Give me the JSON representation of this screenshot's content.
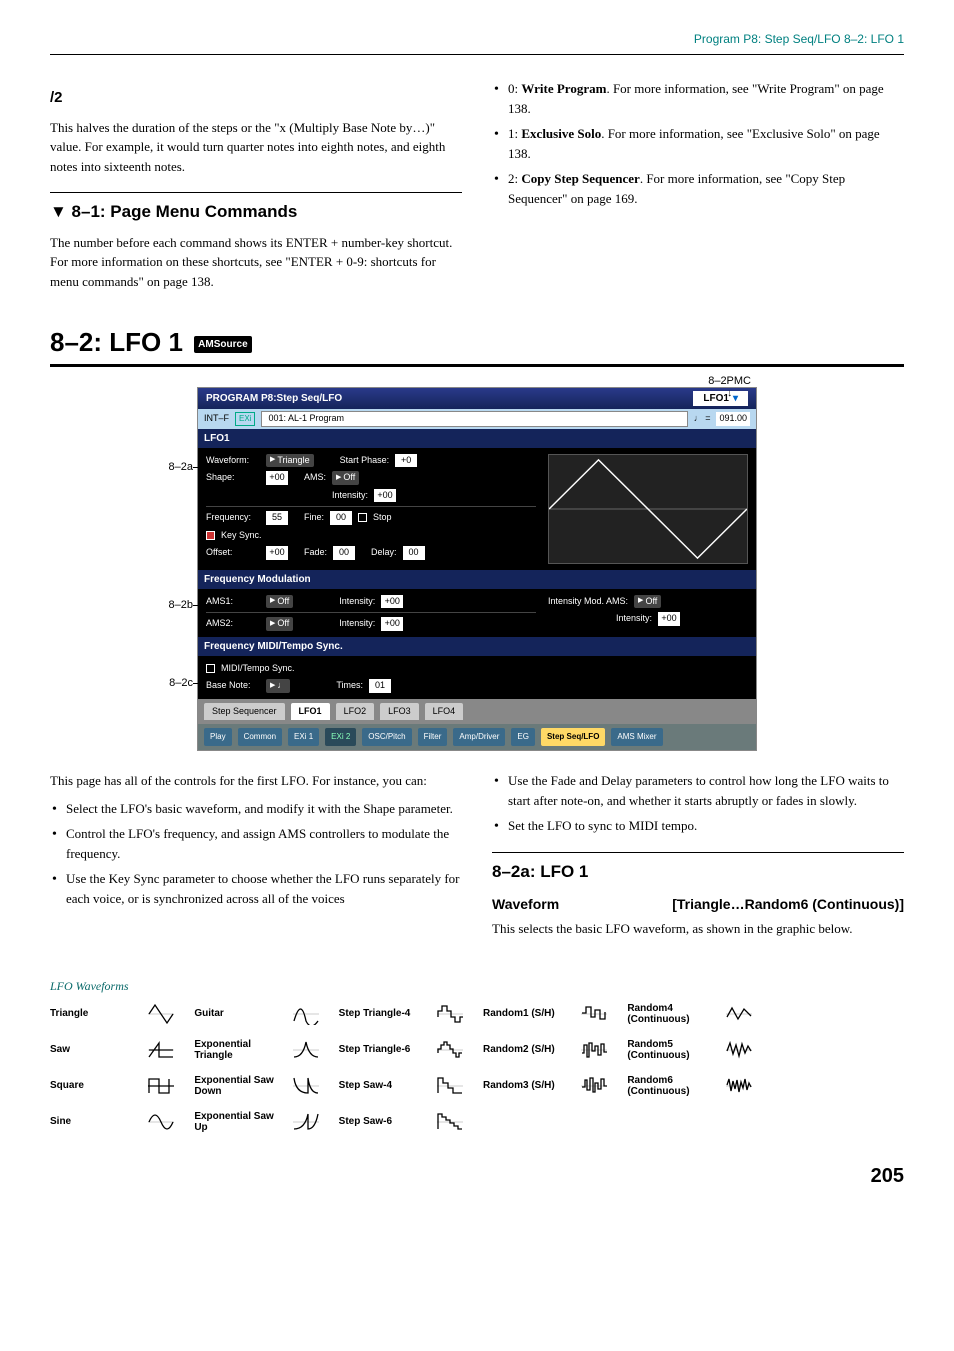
{
  "header": "Program P8: Step Seq/LFO    8–2: LFO 1",
  "left": {
    "h1": "/2",
    "p1": "This halves the duration of the steps or the \"x (Multiply Base Note by…)\" value. For example, it would turn quarter notes into eighth notes, and eighth notes into sixteenth notes.",
    "h2": "▼ 8–1: Page Menu Commands",
    "p2": "The number before each command shows its ENTER + number-key shortcut. For more information on these shortcuts, see \"ENTER + 0-9: shortcuts for menu commands\" on page 138."
  },
  "right_top": {
    "items": [
      {
        "pre": "0: ",
        "b": "Write Program",
        "post": ". For more information, see \"Write Program\" on page 138."
      },
      {
        "pre": "1: ",
        "b": "Exclusive Solo",
        "post": ". For more information, see \"Exclusive Solo\" on page 138."
      },
      {
        "pre": "2: ",
        "b": "Copy Step Sequencer",
        "post": ". For more information, see \"Copy Step Sequencer\" on page 169."
      }
    ]
  },
  "big_heading": "8–2: LFO 1",
  "badge": "AMSource",
  "callouts": {
    "topright": "8–2PMC",
    "a": "8–2a",
    "b": "8–2b",
    "c": "8–2c"
  },
  "panel": {
    "title_left": "PROGRAM P8:Step Seq/LFO",
    "title_right_lbl": "LFO1",
    "sub_left": "INT–F",
    "sub_exi": "EXi",
    "sub_prog": "001: AL-1 Program",
    "tempo_mark": "♩ =",
    "tempo_val": "091.00",
    "s1": {
      "head": "LFO1",
      "waveform_lbl": "Waveform:",
      "waveform_val": "Triangle",
      "startphase_lbl": "Start Phase:",
      "startphase_val": "+0",
      "shape_lbl": "Shape:",
      "shape_val": "+00",
      "ams_lbl": "AMS:",
      "ams_val": "Off",
      "intensity_lbl": "Intensity:",
      "intensity_val": "+00",
      "freq_lbl": "Frequency:",
      "freq_val": "55",
      "fine_lbl": "Fine:",
      "fine_val": "00",
      "stop_lbl": "Stop",
      "keysync_lbl": "Key Sync.",
      "offset_lbl": "Offset:",
      "offset_val": "+00",
      "fade_lbl": "Fade:",
      "fade_val": "00",
      "delay_lbl": "Delay:",
      "delay_val": "00"
    },
    "s2": {
      "head": "Frequency Modulation",
      "ams1_lbl": "AMS1:",
      "ams1_val": "Off",
      "int1_lbl": "Intensity:",
      "int1_val": "+00",
      "imod_lbl": "Intensity Mod. AMS:",
      "imod_val": "Off",
      "imod_int_lbl": "Intensity:",
      "imod_int_val": "+00",
      "ams2_lbl": "AMS2:",
      "ams2_val": "Off",
      "int2_lbl": "Intensity:",
      "int2_val": "+00"
    },
    "s3": {
      "head": "Frequency MIDI/Tempo Sync.",
      "mts_lbl": "MIDI/Tempo Sync.",
      "bn_lbl": "Base Note:",
      "bn_val": "♩",
      "times_lbl": "Times:",
      "times_val": "01"
    },
    "tabs": [
      "Step Sequencer",
      "LFO1",
      "LFO2",
      "LFO3",
      "LFO4"
    ],
    "bottom": [
      "Play",
      "Common",
      "EXi 1",
      "EXi 2",
      "OSC/Pitch",
      "Filter",
      "Amp/Driver",
      "EG",
      "Step Seq/LFO",
      "AMS Mixer"
    ]
  },
  "below_left": {
    "p": "This page has all of the controls for the first LFO. For instance, you can:",
    "items": [
      "Select the LFO's basic waveform, and modify it with the Shape parameter.",
      "Control the LFO's frequency, and assign AMS controllers to modulate the frequency.",
      "Use the Key Sync parameter to choose whether the LFO runs separately for each voice, or is synchronized across all of the voices"
    ]
  },
  "below_right": {
    "items": [
      "Use the Fade and Delay parameters to control how long the LFO waits to start after note-on, and whether it starts abruptly or fades in slowly.",
      "Set the LFO to sync to MIDI tempo."
    ],
    "h": "8–2a: LFO 1",
    "param_l": "Waveform",
    "param_r": "[Triangle…Random6 (Continuous)]",
    "p": "This selects the basic LFO waveform, as shown in the graphic below."
  },
  "lfo_title": "LFO Waveforms",
  "lfo": [
    {
      "n": "Triangle",
      "w": "tri"
    },
    {
      "n": "Guitar",
      "w": "guitar"
    },
    {
      "n": "Step Triangle-4",
      "w": "steptri4"
    },
    {
      "n": "Random1 (S/H)",
      "w": "rand1"
    },
    {
      "n": "Random4 (Continuous)",
      "w": "rand4"
    },
    {
      "n": "Saw",
      "w": "saw"
    },
    {
      "n": "Exponential Triangle",
      "w": "exptri"
    },
    {
      "n": "Step Triangle-6",
      "w": "steptri6"
    },
    {
      "n": "Random2 (S/H)",
      "w": "rand2"
    },
    {
      "n": "Random5 (Continuous)",
      "w": "rand5"
    },
    {
      "n": "Square",
      "w": "sq"
    },
    {
      "n": "Exponential Saw Down",
      "w": "expsawd"
    },
    {
      "n": "Step Saw-4",
      "w": "stepsaw4"
    },
    {
      "n": "Random3 (S/H)",
      "w": "rand3"
    },
    {
      "n": "Random6 (Continuous)",
      "w": "rand6"
    },
    {
      "n": "Sine",
      "w": "sine"
    },
    {
      "n": "Exponential Saw Up",
      "w": "expsawu"
    },
    {
      "n": "Step Saw-6",
      "w": "stepsaw6"
    }
  ],
  "page_num": "205"
}
